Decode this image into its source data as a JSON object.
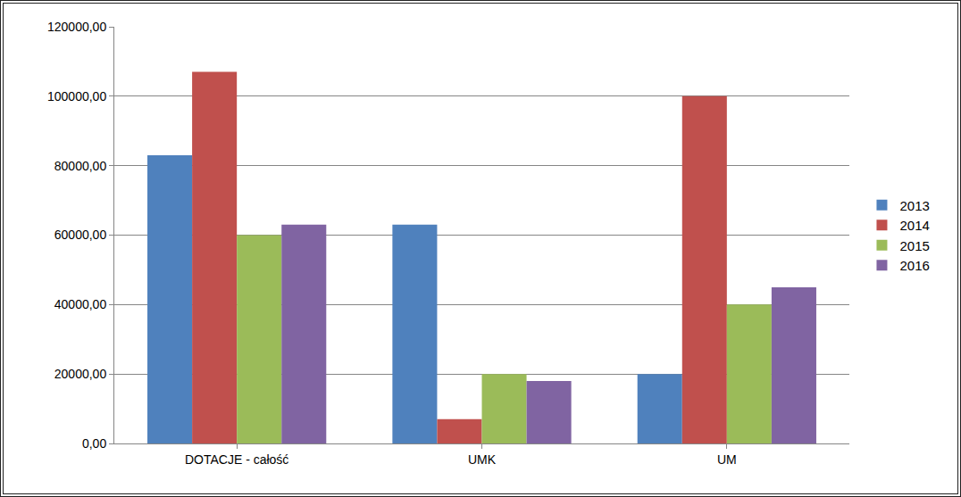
{
  "chart_data": {
    "type": "bar",
    "categories": [
      "DOTACJE - całość",
      "UMK",
      "UM"
    ],
    "series": [
      {
        "name": "2013",
        "color": "#4f81bd",
        "values": [
          83000,
          63000,
          20000
        ]
      },
      {
        "name": "2014",
        "color": "#c0504d",
        "values": [
          107000,
          7000,
          100000
        ]
      },
      {
        "name": "2015",
        "color": "#9bbb59",
        "values": [
          60000,
          20000,
          40000
        ]
      },
      {
        "name": "2016",
        "color": "#8064a2",
        "values": [
          63000,
          18000,
          45000
        ]
      }
    ],
    "ylim": [
      0,
      120000
    ],
    "yticks": [
      {
        "value": 0,
        "label": "0,00"
      },
      {
        "value": 20000,
        "label": "20000,00"
      },
      {
        "value": 40000,
        "label": "40000,00"
      },
      {
        "value": 60000,
        "label": "60000,00"
      },
      {
        "value": 80000,
        "label": "80000,00"
      },
      {
        "value": 100000,
        "label": "100000,00"
      },
      {
        "value": 120000,
        "label": "120000,00"
      }
    ],
    "grid": true,
    "legend": "right"
  }
}
